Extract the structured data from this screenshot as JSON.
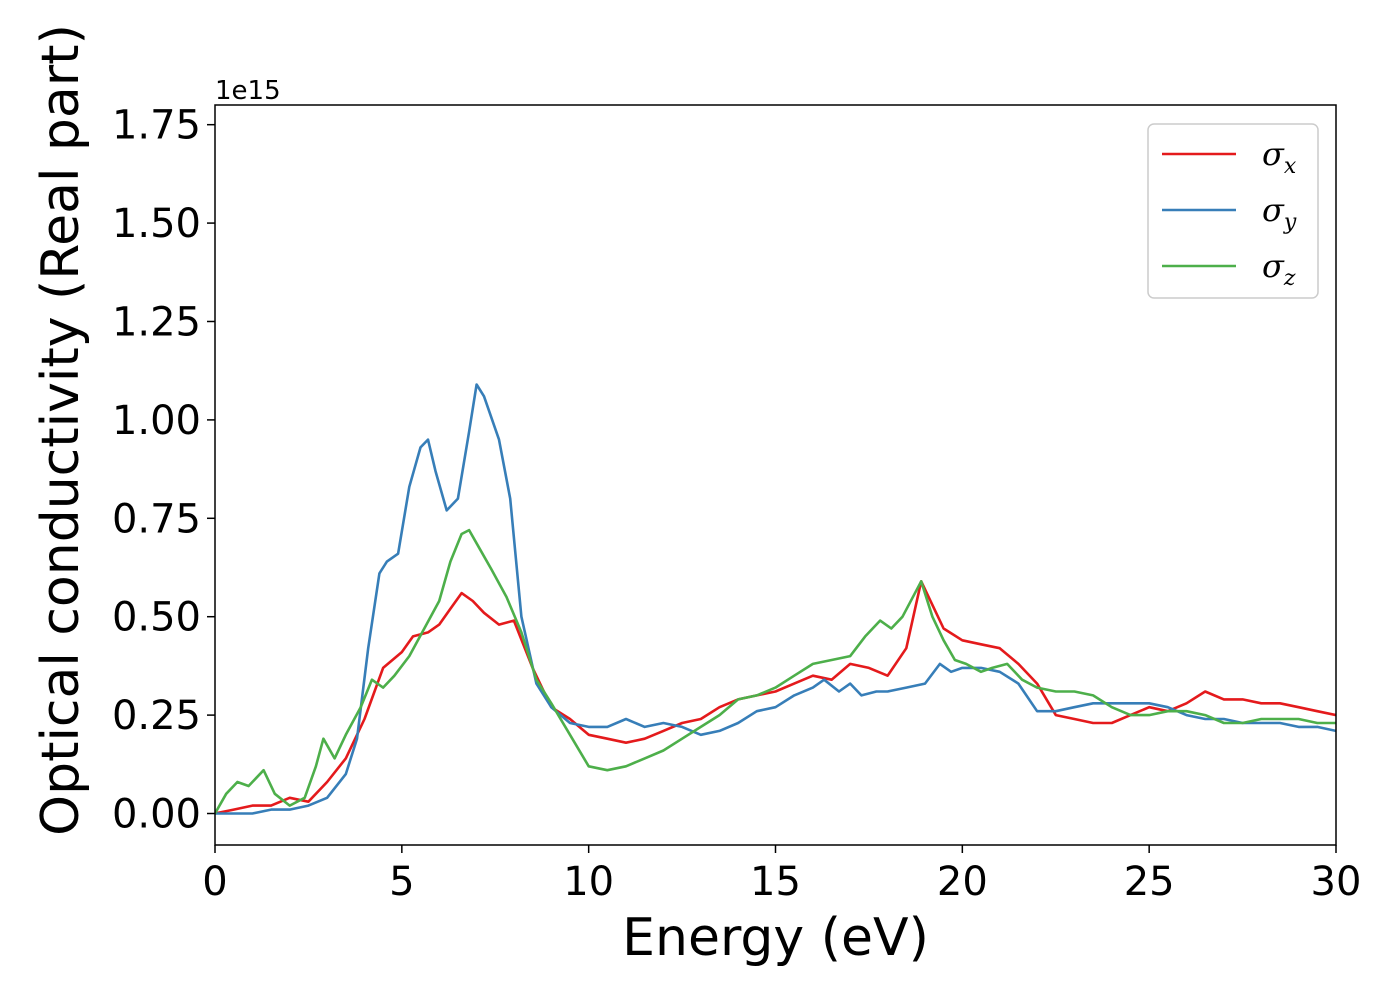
{
  "chart_data": {
    "type": "line",
    "title": "",
    "xlabel": "Energy (eV)",
    "ylabel": "Optical conductivity (Real part)",
    "y_offset_label": "1e15",
    "xlim": [
      0,
      30
    ],
    "ylim": [
      -0.08,
      1.8
    ],
    "x_ticks": [
      0,
      5,
      10,
      15,
      20,
      25,
      30
    ],
    "x_tick_labels": [
      "0",
      "5",
      "10",
      "15",
      "20",
      "25",
      "30"
    ],
    "y_ticks": [
      0.0,
      0.25,
      0.5,
      0.75,
      1.0,
      1.25,
      1.5,
      1.75
    ],
    "y_tick_labels": [
      "0.00",
      "0.25",
      "0.50",
      "0.75",
      "1.00",
      "1.25",
      "1.50",
      "1.75"
    ],
    "grid": false,
    "legend_position": "top-right",
    "series": [
      {
        "name": "σx",
        "legend_symbol": "σ",
        "legend_subscript": "x",
        "color": "#e41a1c",
        "x": [
          0,
          0.5,
          1.0,
          1.5,
          2.0,
          2.5,
          3.0,
          3.5,
          4.0,
          4.5,
          5.0,
          5.3,
          5.7,
          6.0,
          6.3,
          6.6,
          6.9,
          7.2,
          7.6,
          8.0,
          8.5,
          9.0,
          9.5,
          10.0,
          10.5,
          11.0,
          11.5,
          12.0,
          12.5,
          13.0,
          13.5,
          14.0,
          14.5,
          15.0,
          15.5,
          16.0,
          16.5,
          17.0,
          17.5,
          18.0,
          18.5,
          18.9,
          19.2,
          19.5,
          20.0,
          20.5,
          21.0,
          21.5,
          22.0,
          22.5,
          23.0,
          23.5,
          24.0,
          24.5,
          25.0,
          25.5,
          26.0,
          26.5,
          27.0,
          27.5,
          28.0,
          28.5,
          29.0,
          29.5,
          30.0
        ],
        "y": [
          0.0,
          0.01,
          0.02,
          0.02,
          0.04,
          0.03,
          0.08,
          0.14,
          0.24,
          0.37,
          0.41,
          0.45,
          0.46,
          0.48,
          0.52,
          0.56,
          0.54,
          0.51,
          0.48,
          0.49,
          0.37,
          0.27,
          0.24,
          0.2,
          0.19,
          0.18,
          0.19,
          0.21,
          0.23,
          0.24,
          0.27,
          0.29,
          0.3,
          0.31,
          0.33,
          0.35,
          0.34,
          0.38,
          0.37,
          0.35,
          0.42,
          0.59,
          0.53,
          0.47,
          0.44,
          0.43,
          0.42,
          0.38,
          0.33,
          0.25,
          0.24,
          0.23,
          0.23,
          0.25,
          0.27,
          0.26,
          0.28,
          0.31,
          0.29,
          0.29,
          0.28,
          0.28,
          0.27,
          0.26,
          0.25
        ]
      },
      {
        "name": "σy",
        "legend_symbol": "σ",
        "legend_subscript": "y",
        "color": "#377eb8",
        "x": [
          0,
          0.5,
          1.0,
          1.5,
          2.0,
          2.5,
          3.0,
          3.5,
          3.8,
          4.1,
          4.4,
          4.6,
          4.9,
          5.2,
          5.5,
          5.7,
          5.9,
          6.2,
          6.5,
          6.8,
          7.0,
          7.2,
          7.6,
          7.9,
          8.2,
          8.6,
          9.0,
          9.5,
          10.0,
          10.5,
          11.0,
          11.5,
          12.0,
          12.5,
          13.0,
          13.5,
          14.0,
          14.5,
          15.0,
          15.5,
          16.0,
          16.3,
          16.7,
          17.0,
          17.3,
          17.7,
          18.0,
          18.5,
          19.0,
          19.4,
          19.7,
          20.0,
          20.5,
          21.0,
          21.5,
          22.0,
          22.5,
          23.0,
          23.5,
          24.0,
          24.5,
          25.0,
          25.5,
          26.0,
          26.5,
          27.0,
          27.5,
          28.0,
          28.5,
          29.0,
          29.5,
          30.0
        ],
        "y": [
          0.0,
          0.0,
          0.0,
          0.01,
          0.01,
          0.02,
          0.04,
          0.1,
          0.19,
          0.42,
          0.61,
          0.64,
          0.66,
          0.83,
          0.93,
          0.95,
          0.87,
          0.77,
          0.8,
          0.97,
          1.09,
          1.06,
          0.95,
          0.8,
          0.5,
          0.33,
          0.27,
          0.23,
          0.22,
          0.22,
          0.24,
          0.22,
          0.23,
          0.22,
          0.2,
          0.21,
          0.23,
          0.26,
          0.27,
          0.3,
          0.32,
          0.34,
          0.31,
          0.33,
          0.3,
          0.31,
          0.31,
          0.32,
          0.33,
          0.38,
          0.36,
          0.37,
          0.37,
          0.36,
          0.33,
          0.26,
          0.26,
          0.27,
          0.28,
          0.28,
          0.28,
          0.28,
          0.27,
          0.25,
          0.24,
          0.24,
          0.23,
          0.23,
          0.23,
          0.22,
          0.22,
          0.21
        ]
      },
      {
        "name": "σz",
        "legend_symbol": "σ",
        "legend_subscript": "z",
        "color": "#4daf4a",
        "x": [
          0,
          0.3,
          0.6,
          0.9,
          1.3,
          1.6,
          2.0,
          2.4,
          2.7,
          2.9,
          3.2,
          3.5,
          3.9,
          4.2,
          4.5,
          4.8,
          5.2,
          5.6,
          6.0,
          6.3,
          6.6,
          6.8,
          7.1,
          7.4,
          7.8,
          8.2,
          8.6,
          9.0,
          9.5,
          10.0,
          10.5,
          11.0,
          11.5,
          12.0,
          12.5,
          13.0,
          13.5,
          14.0,
          14.5,
          15.0,
          15.5,
          16.0,
          16.5,
          17.0,
          17.4,
          17.8,
          18.1,
          18.4,
          18.9,
          19.2,
          19.5,
          19.8,
          20.1,
          20.5,
          20.8,
          21.2,
          21.6,
          22.0,
          22.5,
          23.0,
          23.5,
          24.0,
          24.5,
          25.0,
          25.5,
          26.0,
          26.5,
          27.0,
          27.5,
          28.0,
          28.5,
          29.0,
          29.5,
          30.0
        ],
        "y": [
          0.0,
          0.05,
          0.08,
          0.07,
          0.11,
          0.05,
          0.02,
          0.04,
          0.12,
          0.19,
          0.14,
          0.2,
          0.27,
          0.34,
          0.32,
          0.35,
          0.4,
          0.47,
          0.54,
          0.64,
          0.71,
          0.72,
          0.67,
          0.62,
          0.55,
          0.46,
          0.34,
          0.28,
          0.2,
          0.12,
          0.11,
          0.12,
          0.14,
          0.16,
          0.19,
          0.22,
          0.25,
          0.29,
          0.3,
          0.32,
          0.35,
          0.38,
          0.39,
          0.4,
          0.45,
          0.49,
          0.47,
          0.5,
          0.59,
          0.5,
          0.44,
          0.39,
          0.38,
          0.36,
          0.37,
          0.38,
          0.34,
          0.32,
          0.31,
          0.31,
          0.3,
          0.27,
          0.25,
          0.25,
          0.26,
          0.26,
          0.25,
          0.23,
          0.23,
          0.24,
          0.24,
          0.24,
          0.23,
          0.23
        ]
      }
    ]
  }
}
